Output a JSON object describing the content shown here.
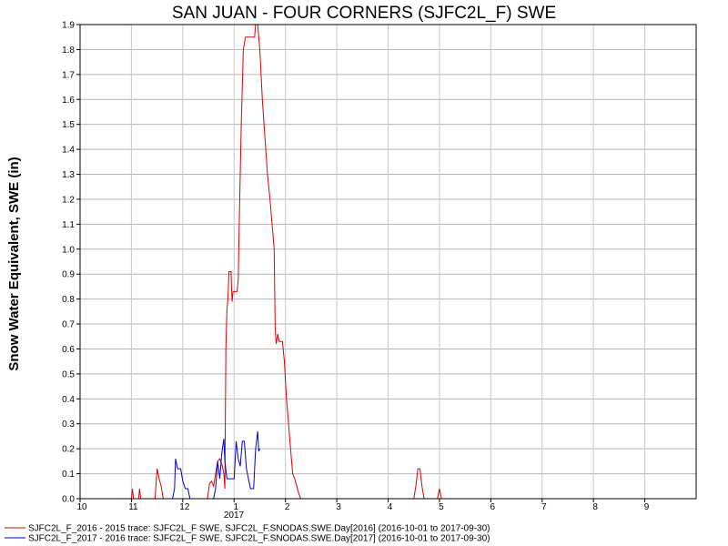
{
  "chart_data": {
    "type": "line",
    "title": "SAN JUAN - FOUR CORNERS (SJFC2L_F) SWE",
    "xlabel": "",
    "ylabel": "Snow Water Equivalent, SWE (in)",
    "ylim": [
      0,
      1.9
    ],
    "xlim": [
      0,
      12
    ],
    "yticks": [
      0.0,
      0.1,
      0.2,
      0.3,
      0.4,
      0.5,
      0.6,
      0.7,
      0.8,
      0.9,
      1.0,
      1.1,
      1.2,
      1.3,
      1.4,
      1.5,
      1.6,
      1.7,
      1.8,
      1.9
    ],
    "ytick_labels": [
      "0.0",
      "0.1",
      "0.2",
      "0.3",
      "0.4",
      "0.5",
      "0.6",
      "0.7",
      "0.8",
      "0.9",
      "1.0",
      "1.1",
      "1.2",
      "1.3",
      "1.4",
      "1.5",
      "1.6",
      "1.7",
      "1.8",
      "1.9"
    ],
    "xtick_labels": [
      "10",
      "11",
      "12",
      "1",
      "2",
      "3",
      "4",
      "5",
      "6",
      "7",
      "8",
      "9"
    ],
    "year_label": "2017",
    "grid": true,
    "legend_position": "bottom",
    "series": [
      {
        "name": "SJFC2L_F_2016 - 2015 trace: SJFC2L_F SWE, SJFC2L_F.SNODAS.SWE.Day[2016] (2016-10-01 to 2017-09-30)",
        "color": "#e00000",
        "points": [
          [
            0,
            0
          ],
          [
            1.0,
            0
          ],
          [
            1.02,
            0.04
          ],
          [
            1.04,
            0
          ],
          [
            1.14,
            0
          ],
          [
            1.16,
            0.04
          ],
          [
            1.18,
            0
          ],
          [
            1.46,
            0
          ],
          [
            1.5,
            0.12
          ],
          [
            1.54,
            0.08
          ],
          [
            1.58,
            0.05
          ],
          [
            1.62,
            0
          ],
          [
            2.48,
            0
          ],
          [
            2.52,
            0.06
          ],
          [
            2.56,
            0.07
          ],
          [
            2.6,
            0.05
          ],
          [
            2.64,
            0.1
          ],
          [
            2.68,
            0.15
          ],
          [
            2.72,
            0.16
          ],
          [
            2.76,
            0.14
          ],
          [
            2.8,
            0.1
          ],
          [
            2.82,
            0.04
          ],
          [
            2.84,
            0.6
          ],
          [
            2.86,
            0.76
          ],
          [
            2.88,
            0.8
          ],
          [
            2.9,
            0.91
          ],
          [
            2.94,
            0.91
          ],
          [
            2.96,
            0.79
          ],
          [
            2.98,
            0.83
          ],
          [
            3.06,
            0.83
          ],
          [
            3.08,
            0.88
          ],
          [
            3.1,
            1.1
          ],
          [
            3.14,
            1.5
          ],
          [
            3.18,
            1.8
          ],
          [
            3.22,
            1.85
          ],
          [
            3.4,
            1.85
          ],
          [
            3.42,
            1.9
          ],
          [
            3.46,
            1.9
          ],
          [
            3.5,
            1.8
          ],
          [
            3.55,
            1.6
          ],
          [
            3.6,
            1.45
          ],
          [
            3.65,
            1.3
          ],
          [
            3.7,
            1.2
          ],
          [
            3.74,
            1.1
          ],
          [
            3.78,
            1.0
          ],
          [
            3.8,
            0.68
          ],
          [
            3.82,
            0.62
          ],
          [
            3.85,
            0.66
          ],
          [
            3.88,
            0.63
          ],
          [
            3.94,
            0.63
          ],
          [
            3.98,
            0.55
          ],
          [
            4.02,
            0.4
          ],
          [
            4.06,
            0.3
          ],
          [
            4.1,
            0.2
          ],
          [
            4.14,
            0.1
          ],
          [
            4.18,
            0.08
          ],
          [
            4.22,
            0.05
          ],
          [
            4.26,
            0.02
          ],
          [
            4.3,
            0
          ],
          [
            6.5,
            0
          ],
          [
            6.54,
            0.05
          ],
          [
            6.58,
            0.12
          ],
          [
            6.62,
            0.12
          ],
          [
            6.66,
            0.05
          ],
          [
            6.7,
            0
          ],
          [
            6.96,
            0
          ],
          [
            7.0,
            0.04
          ],
          [
            7.04,
            0
          ],
          [
            12,
            0
          ]
        ]
      },
      {
        "name": "SJFC2L_F_2017 - 2016 trace: SJFC2L_F SWE, SJFC2L_F.SNODAS.SWE.Day[2017] (2016-10-01 to 2017-09-30)",
        "color": "#0000cc",
        "points": [
          [
            1.8,
            0
          ],
          [
            1.84,
            0.04
          ],
          [
            1.86,
            0.16
          ],
          [
            1.9,
            0.12
          ],
          [
            1.96,
            0.12
          ],
          [
            2.0,
            0.07
          ],
          [
            2.05,
            0.04
          ],
          [
            2.1,
            0.04
          ],
          [
            2.14,
            0
          ],
          [
            2.6,
            0
          ],
          [
            2.64,
            0.04
          ],
          [
            2.68,
            0.15
          ],
          [
            2.72,
            0.08
          ],
          [
            2.76,
            0.18
          ],
          [
            2.8,
            0.24
          ],
          [
            2.82,
            0.15
          ],
          [
            2.86,
            0.08
          ],
          [
            2.9,
            0.08
          ],
          [
            3.0,
            0.08
          ],
          [
            3.04,
            0.23
          ],
          [
            3.08,
            0.16
          ],
          [
            3.12,
            0.13
          ],
          [
            3.16,
            0.23
          ],
          [
            3.2,
            0.23
          ],
          [
            3.24,
            0.12
          ],
          [
            3.28,
            0.08
          ],
          [
            3.32,
            0.04
          ],
          [
            3.38,
            0.04
          ],
          [
            3.42,
            0.2
          ],
          [
            3.46,
            0.27
          ],
          [
            3.48,
            0.19
          ],
          [
            3.5,
            0.2
          ]
        ]
      }
    ]
  }
}
